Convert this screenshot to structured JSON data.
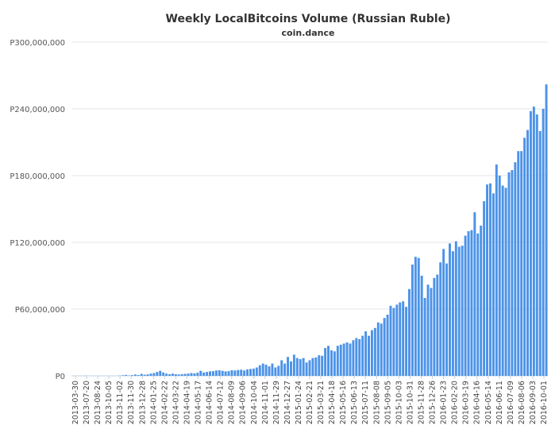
{
  "chart_data": {
    "type": "bar",
    "title": "Weekly LocalBitcoins Volume (Russian Ruble)",
    "subtitle": "coin.dance",
    "xlabel": "",
    "ylabel": "",
    "ylim": [
      0,
      300000000
    ],
    "yticks": [
      0,
      60000000,
      120000000,
      180000000,
      240000000,
      300000000
    ],
    "ytick_labels": [
      "P0",
      "P60,000,000",
      "P120,000,000",
      "P180,000,000",
      "P240,000,000",
      "P300,000,000"
    ],
    "xtick_labels": [
      "2013-03-30",
      "2013-07-20",
      "2013-08-24",
      "2013-10-05",
      "2013-11-02",
      "2013-11-30",
      "2013-12-28",
      "2014-01-25",
      "2014-02-22",
      "2014-03-22",
      "2014-04-19",
      "2014-05-17",
      "2014-06-14",
      "2014-07-12",
      "2014-08-09",
      "2014-09-06",
      "2014-10-04",
      "2014-11-01",
      "2014-11-29",
      "2014-12-27",
      "2015-01-24",
      "2015-02-21",
      "2015-03-21",
      "2015-04-18",
      "2015-05-16",
      "2015-06-13",
      "2015-07-11",
      "2015-08-08",
      "2015-09-05",
      "2015-10-03",
      "2015-10-31",
      "2015-11-28",
      "2015-12-26",
      "2016-01-23",
      "2016-02-20",
      "2016-03-19",
      "2016-04-16",
      "2016-05-14",
      "2016-06-11",
      "2016-07-09",
      "2016-08-06",
      "2016-09-03",
      "2016-10-01"
    ],
    "color": "#4c93e8",
    "grid": true,
    "legend": "none",
    "values": [
      0,
      0,
      50000,
      0,
      100000,
      0,
      20000,
      0,
      0,
      0,
      0,
      0,
      0,
      0,
      0,
      200000,
      500000,
      800000,
      300000,
      600000,
      1200000,
      700000,
      1800000,
      1000000,
      1300000,
      2000000,
      2500000,
      3500000,
      4500000,
      3000000,
      2000000,
      1500000,
      2000000,
      1500000,
      1200000,
      1500000,
      1800000,
      2000000,
      2500000,
      2200000,
      2800000,
      4500000,
      3000000,
      3500000,
      4000000,
      4200000,
      4800000,
      5000000,
      4500000,
      4000000,
      4200000,
      5000000,
      4800000,
      5200000,
      5500000,
      4800000,
      5800000,
      6200000,
      6500000,
      7500000,
      9500000,
      11000000,
      10000000,
      8500000,
      11000000,
      7500000,
      9000000,
      14000000,
      11000000,
      17000000,
      13000000,
      19000000,
      16000000,
      15000000,
      16000000,
      12000000,
      14000000,
      16000000,
      16500000,
      18500000,
      18000000,
      25000000,
      27000000,
      23000000,
      22000000,
      27000000,
      28000000,
      29000000,
      30000000,
      29000000,
      32000000,
      34000000,
      33000000,
      36000000,
      40000000,
      36000000,
      41000000,
      43000000,
      48000000,
      47000000,
      52000000,
      55000000,
      63000000,
      61000000,
      64000000,
      66000000,
      67000000,
      62000000,
      78000000,
      100000000,
      107000000,
      106000000,
      90000000,
      70000000,
      82000000,
      79000000,
      88000000,
      91000000,
      102000000,
      114000000,
      101000000,
      119000000,
      112000000,
      121000000,
      116000000,
      117000000,
      126000000,
      130000000,
      131000000,
      147000000,
      128000000,
      135000000,
      157000000,
      172000000,
      173000000,
      164000000,
      190000000,
      180000000,
      171000000,
      169000000,
      183000000,
      185000000,
      192000000,
      202000000,
      202000000,
      214000000,
      221000000,
      238000000,
      242000000,
      235000000,
      220000000,
      240000000,
      262000000
    ]
  }
}
